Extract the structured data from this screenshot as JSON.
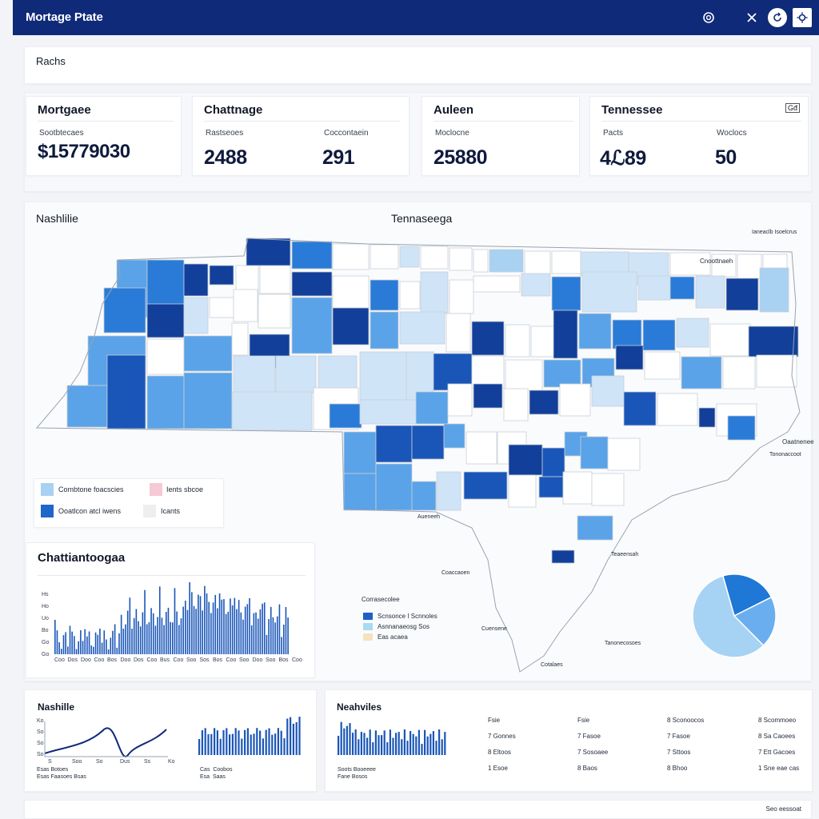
{
  "header": {
    "title": "Mortage Ptate"
  },
  "top_card": {
    "label": "Rachs"
  },
  "stats": [
    {
      "title": "Mortgaee",
      "items": [
        {
          "label": "Sootbtecaes",
          "value": "$15779030"
        }
      ]
    },
    {
      "title": "Chattnage",
      "items": [
        {
          "label": "Rastseoes",
          "value": "2488"
        },
        {
          "label": "Coccontaein",
          "value": "291"
        }
      ]
    },
    {
      "title": "Auleen",
      "items": [
        {
          "label": "Moclocne",
          "value": "25880"
        }
      ]
    },
    {
      "title": "Tennessee",
      "badge": "Gđ",
      "items": [
        {
          "label": "Pacts",
          "value": "4ℒ89"
        },
        {
          "label": "Woclocs",
          "value": "50"
        }
      ]
    }
  ],
  "map_section": {
    "left_title": "Nashlilie",
    "center_title": "Tennaseega",
    "legend": [
      {
        "label": "Combtone foacscies",
        "color": "#a8d1f2"
      },
      {
        "label": "Ients sbcoe",
        "color": "#f6c9d6"
      },
      {
        "label": "Ooatlcon atcl iwens",
        "color": "#1e66c9"
      },
      {
        "label": "Icants",
        "color": "#eceef0"
      }
    ],
    "annotations": [
      "Ianeaclb Isoelcrus",
      "Cnoottnaeh",
      "Oaatnenee",
      "Tononaccoot",
      "Aueneeh",
      "Teaeensah",
      "Coaccaoen",
      "Cuensene",
      "Tanonecosoes",
      "Cotalaes"
    ],
    "inner_legend_title": "Corrasecolee",
    "inner_legend": [
      {
        "label": "Scnsonce I Scnnoles",
        "color": "#1e5fc4"
      },
      {
        "label": "Asnnanaeosg Sos",
        "color": "#a9daf2"
      },
      {
        "label": "Eas acaea",
        "color": "#f4e3bd"
      }
    ],
    "pie": {
      "values": [
        22,
        20,
        58
      ],
      "colors": [
        "#1f77d6",
        "#6aaef0",
        "#a6d2f4"
      ]
    }
  },
  "bar_card": {
    "title": "Chattiantoogaa",
    "y_ticks": [
      "Hs",
      "Ho",
      "Uo",
      "Bo",
      "Go",
      "Go"
    ],
    "x_ticks": [
      "Coo",
      "Dos",
      "Doo",
      "Coo",
      "Bos",
      "Doo",
      "Dos",
      "Coo",
      "Bus",
      "Coo",
      "Soo",
      "Sos",
      "Bos",
      "Coo",
      "Soo",
      "Doo",
      "Soo",
      "Bos",
      "Coo"
    ]
  },
  "bottom_left": {
    "title": "Nashille",
    "line_y_ticks": [
      "Ko",
      "So",
      "So",
      "So"
    ],
    "line_x_ticks": [
      "S",
      "Soo",
      "So",
      "Dus",
      "Ss",
      "Ko"
    ],
    "caption_1": "Esas Botoes\nEsas Faasoes Bsas",
    "caption_2": "Cas  Coobos\nEsa  Saas"
  },
  "bottom_right": {
    "title": "Neahviles",
    "caption": "Soots Booeeee\nFane Bosos",
    "table": [
      [
        "Fsie",
        "Fsie",
        "8 Sconoocos",
        "8 Scommoeo"
      ],
      [
        "7 Gonnes",
        "7 Fasoe",
        "7 Fasoe",
        "8 Sa Caoees"
      ],
      [
        "8 Eltoos",
        "7 Sosoaee",
        "7 Sttoos",
        "7 Ett Gacoes"
      ],
      [
        "1 Esoe",
        "8 Baos",
        "8 Bhoo",
        "1 Sne eae cas"
      ]
    ]
  },
  "footer": {
    "label": "Seo eessoat"
  }
}
